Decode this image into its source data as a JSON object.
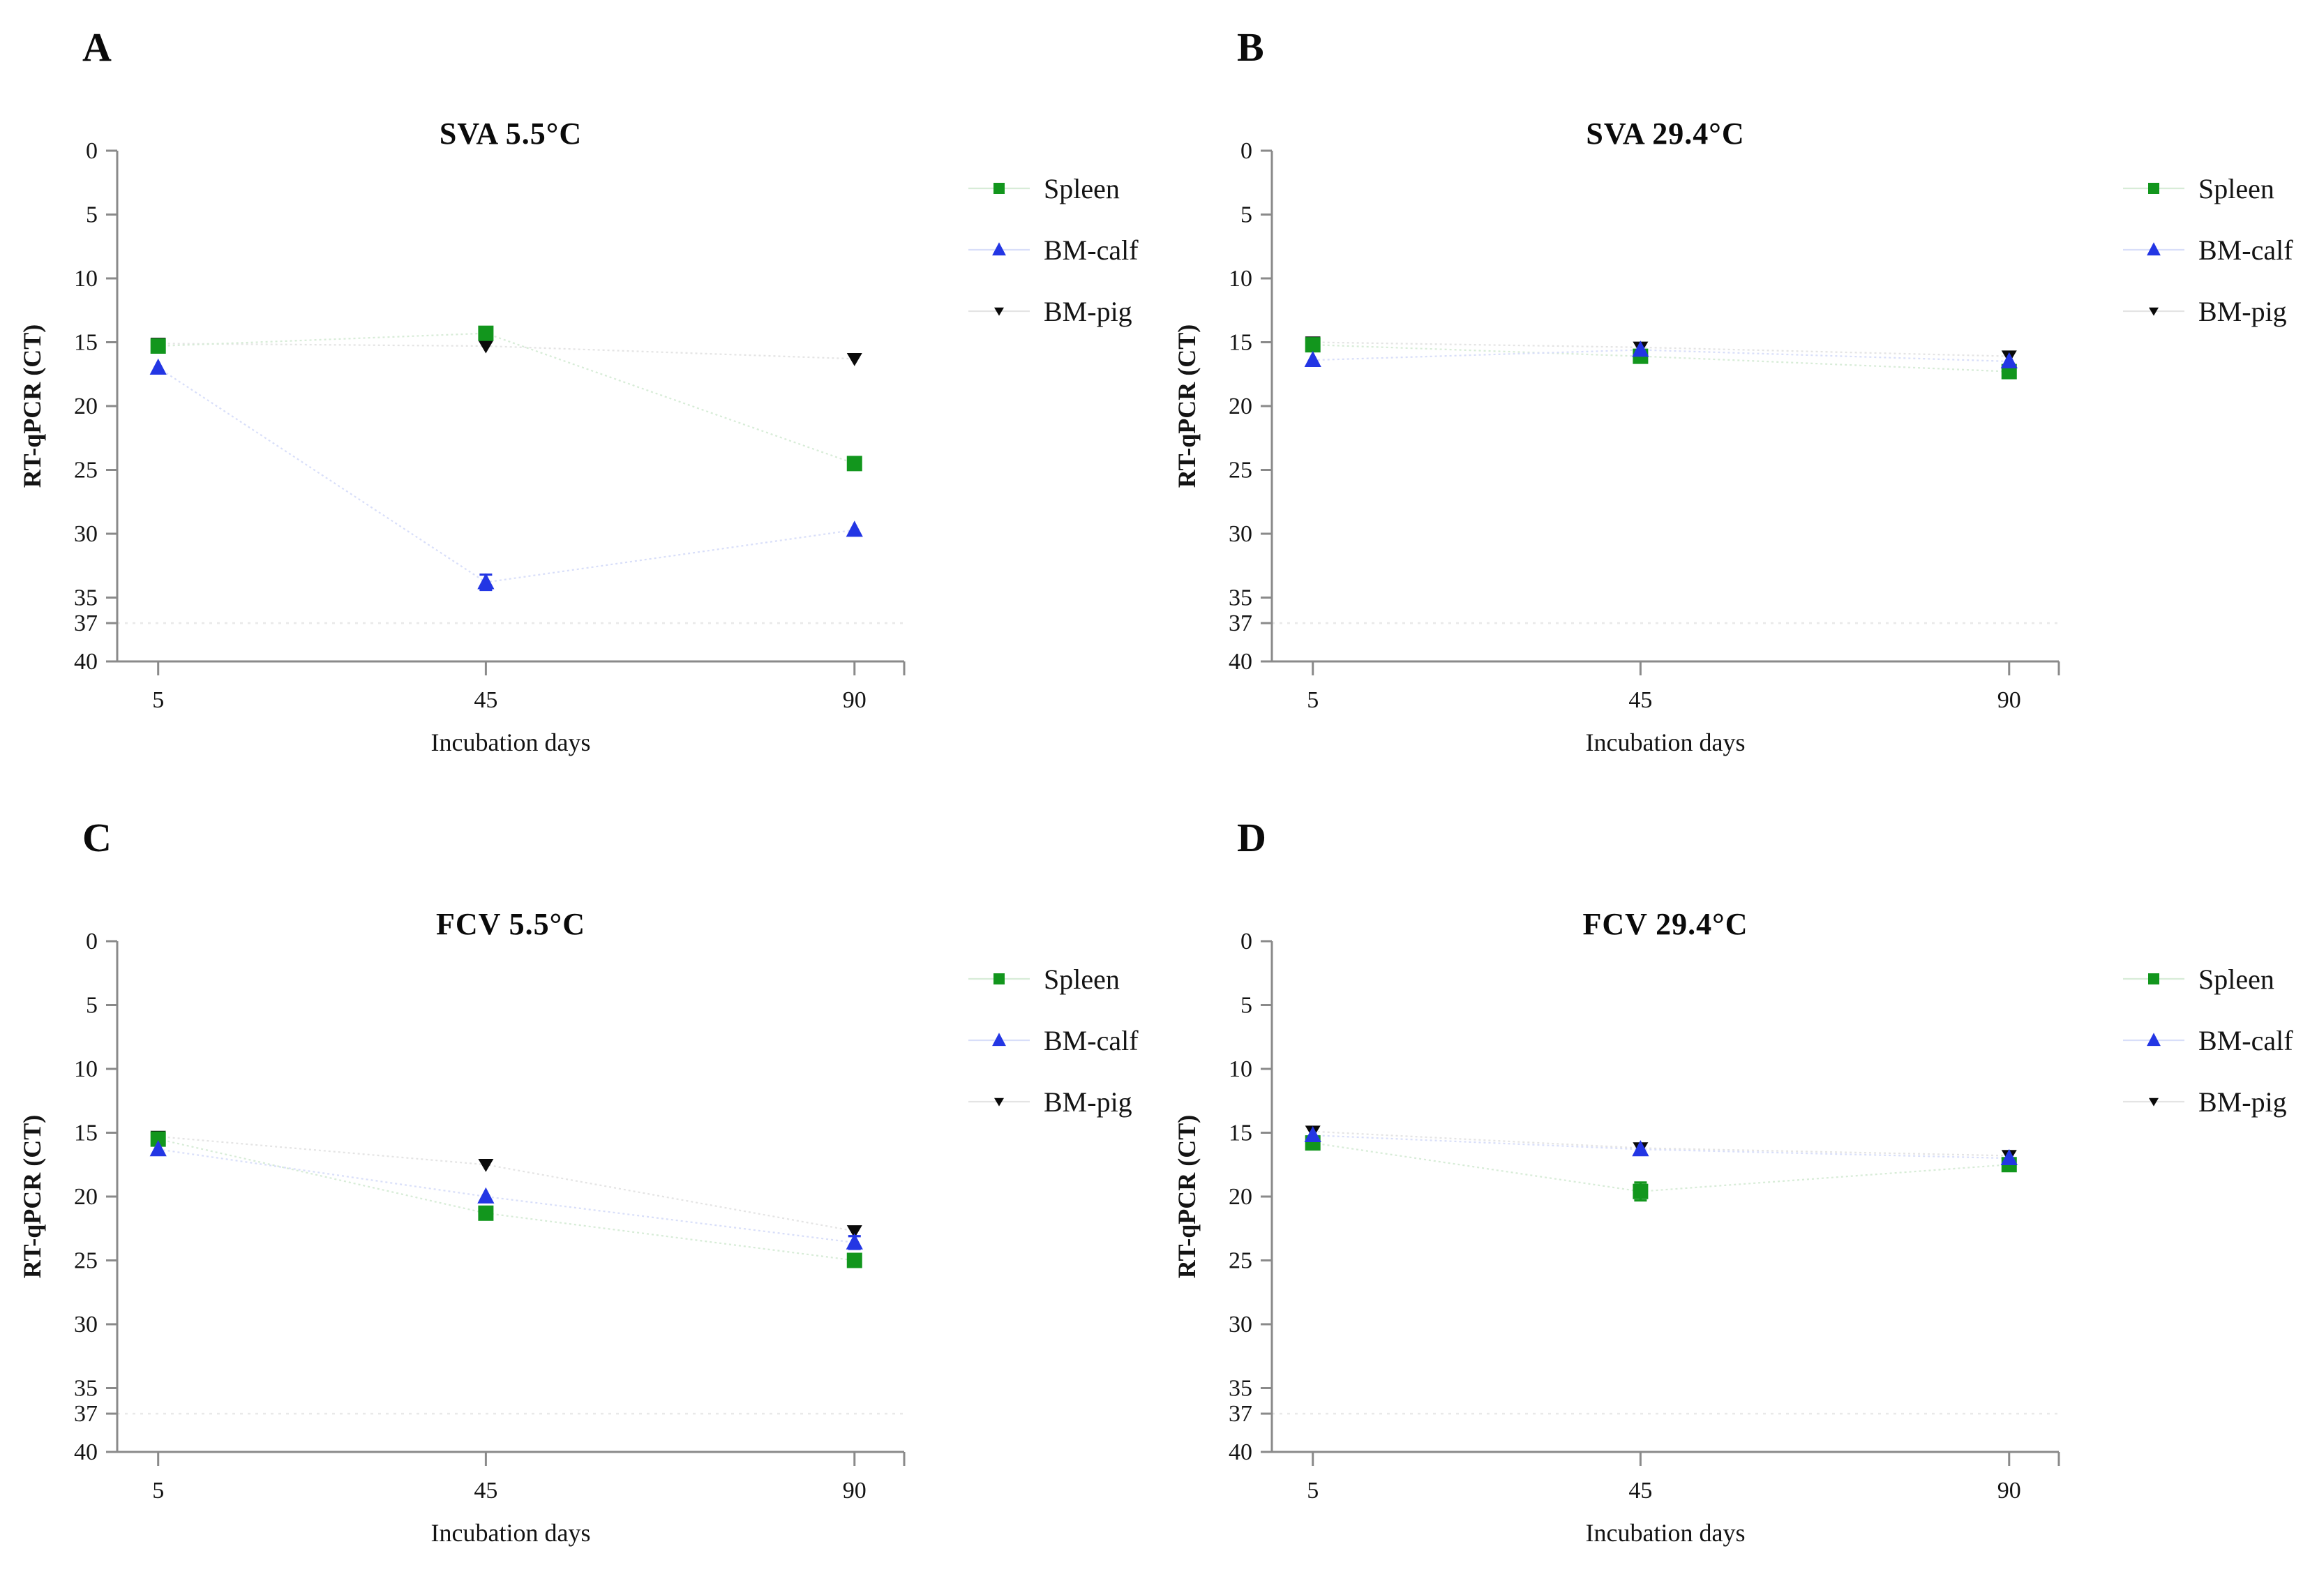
{
  "figure": {
    "y_axis_label": "RT-qPCR (CT)",
    "x_axis_label": "Incubation days",
    "y_ticks": [
      0,
      5,
      10,
      15,
      20,
      25,
      30,
      35,
      37,
      40
    ],
    "x_ticks": [
      5,
      45,
      90
    ],
    "y_range": [
      0,
      40
    ],
    "x_range": [
      0,
      93
    ],
    "cutoff_ct": 37,
    "axis_color": "#8a8a8a",
    "text_color": "#141414",
    "legend": [
      {
        "name": "Spleen",
        "marker": "square",
        "color": "#12961d",
        "line_color": "#d7ecd7"
      },
      {
        "name": "BM-calf",
        "marker": "triangle-up",
        "color": "#2336e4",
        "line_color": "#d8def9"
      },
      {
        "name": "BM-pig",
        "marker": "triangle-down",
        "color": "#0a0a0a",
        "line_color": "#e4e4e4"
      }
    ]
  },
  "chart_data": [
    {
      "type": "line",
      "panel_letter": "A",
      "title": "SVA 5.5°C",
      "xlabel": "Incubation days",
      "ylabel": "RT-qPCR (CT)",
      "x": [
        5,
        45,
        90
      ],
      "ylim": [
        40,
        0
      ],
      "cutoff": 37,
      "legend_position": "right",
      "series": [
        {
          "name": "Spleen",
          "values": [
            15.3,
            14.3,
            24.5
          ],
          "errors": [
            0,
            0,
            0
          ]
        },
        {
          "name": "BM-calf",
          "values": [
            17.0,
            33.8,
            29.7
          ],
          "errors": [
            0,
            0.6,
            0
          ]
        },
        {
          "name": "BM-pig",
          "values": [
            15.1,
            15.3,
            16.3
          ],
          "errors": [
            0,
            0,
            0
          ]
        }
      ]
    },
    {
      "type": "line",
      "panel_letter": "B",
      "title": "SVA 29.4°C",
      "xlabel": "Incubation days",
      "ylabel": "RT-qPCR (CT)",
      "x": [
        5,
        45,
        90
      ],
      "ylim": [
        40,
        0
      ],
      "cutoff": 37,
      "legend_position": "right",
      "series": [
        {
          "name": "Spleen",
          "values": [
            15.2,
            16.1,
            17.3
          ],
          "errors": [
            0,
            0,
            0
          ]
        },
        {
          "name": "BM-calf",
          "values": [
            16.4,
            15.6,
            16.5
          ],
          "errors": [
            0,
            0,
            0
          ]
        },
        {
          "name": "BM-pig",
          "values": [
            15.0,
            15.4,
            16.1
          ],
          "errors": [
            0,
            0,
            0
          ]
        }
      ]
    },
    {
      "type": "line",
      "panel_letter": "C",
      "title": "FCV 5.5°C",
      "xlabel": "Incubation days",
      "ylabel": "RT-qPCR (CT)",
      "x": [
        5,
        45,
        90
      ],
      "ylim": [
        40,
        0
      ],
      "cutoff": 37,
      "legend_position": "right",
      "series": [
        {
          "name": "Spleen",
          "values": [
            15.5,
            21.3,
            25.0
          ],
          "errors": [
            0,
            0,
            0
          ]
        },
        {
          "name": "BM-calf",
          "values": [
            16.3,
            20.0,
            23.6
          ],
          "errors": [
            0,
            0,
            0.5
          ]
        },
        {
          "name": "BM-pig",
          "values": [
            15.3,
            17.5,
            22.7
          ],
          "errors": [
            0,
            0,
            0
          ]
        }
      ]
    },
    {
      "type": "line",
      "panel_letter": "D",
      "title": "FCV 29.4°C",
      "xlabel": "Incubation days",
      "ylabel": "RT-qPCR (CT)",
      "x": [
        5,
        45,
        90
      ],
      "ylim": [
        40,
        0
      ],
      "cutoff": 37,
      "legend_position": "right",
      "series": [
        {
          "name": "Spleen",
          "values": [
            15.8,
            19.6,
            17.5
          ],
          "errors": [
            0.4,
            0.7,
            0
          ]
        },
        {
          "name": "BM-calf",
          "values": [
            15.2,
            16.3,
            17.0
          ],
          "errors": [
            0,
            0,
            0
          ]
        },
        {
          "name": "BM-pig",
          "values": [
            14.9,
            16.2,
            16.8
          ],
          "errors": [
            0,
            0,
            0
          ]
        }
      ]
    }
  ]
}
